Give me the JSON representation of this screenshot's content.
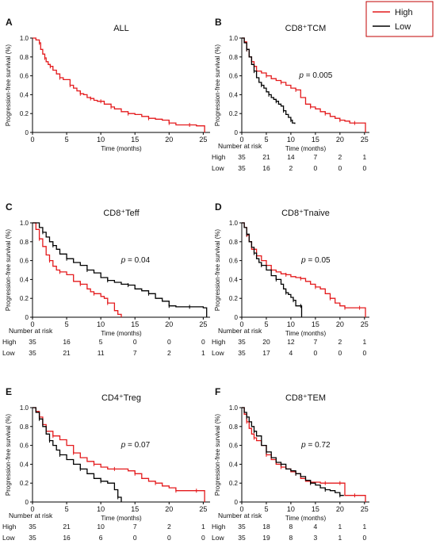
{
  "figure": {
    "ylabel": "Progression-free survival (%)",
    "xlabel": "Time (months)",
    "risk_title": "Number at risk",
    "yticks": [
      "0",
      "0.2",
      "0.4",
      "0.6",
      "0.8",
      "1.0"
    ],
    "xticks": [
      "0",
      "5",
      "10",
      "15",
      "20",
      "25"
    ],
    "legend": [
      {
        "name": "High",
        "color": "#e41a1c"
      },
      {
        "name": "Low",
        "color": "#000000"
      }
    ]
  },
  "chart_data": [
    {
      "type": "line",
      "panel": "A",
      "title": "ALL",
      "xlabel": "Time (months)",
      "ylabel": "Progression-free survival (%)",
      "xlim": [
        0,
        26
      ],
      "ylim": [
        0,
        1
      ],
      "series": [
        {
          "color": "#e41a1c",
          "x": [
            0,
            0.5,
            1,
            1.2,
            1.5,
            1.8,
            2,
            2.3,
            2.6,
            3,
            3.5,
            4,
            4.5,
            5,
            5.5,
            6,
            6.5,
            7,
            7.5,
            8,
            8.5,
            9,
            9.5,
            10,
            10.5,
            11,
            11.5,
            12,
            13,
            14,
            15,
            16,
            17,
            18,
            19,
            20,
            21,
            22,
            23,
            24,
            25,
            25.2
          ],
          "y": [
            1,
            0.98,
            0.95,
            0.88,
            0.83,
            0.79,
            0.75,
            0.72,
            0.7,
            0.66,
            0.62,
            0.58,
            0.56,
            0.56,
            0.5,
            0.47,
            0.44,
            0.41,
            0.4,
            0.37,
            0.36,
            0.34,
            0.33,
            0.33,
            0.3,
            0.3,
            0.27,
            0.25,
            0.22,
            0.2,
            0.19,
            0.17,
            0.15,
            0.14,
            0.13,
            0.1,
            0.08,
            0.08,
            0.08,
            0.07,
            0.07,
            0
          ]
        }
      ]
    },
    {
      "type": "line",
      "panel": "B",
      "title": "CD8⁺TCM",
      "annotation": "p = 0.005",
      "xlabel": "Time (months)",
      "ylabel": "Progression-free survival (%)",
      "xlim": [
        0,
        26
      ],
      "ylim": [
        0,
        1
      ],
      "series": [
        {
          "name": "High",
          "color": "#e41a1c",
          "x": [
            0,
            0.5,
            1,
            1.5,
            2,
            2.5,
            3,
            4,
            5,
            6,
            7,
            8,
            9,
            10,
            11,
            12,
            13,
            14,
            15,
            16,
            17,
            18,
            19,
            20,
            21,
            22,
            23,
            24,
            25,
            25.2
          ],
          "y": [
            1,
            0.96,
            0.88,
            0.8,
            0.75,
            0.7,
            0.65,
            0.63,
            0.6,
            0.57,
            0.55,
            0.53,
            0.5,
            0.47,
            0.45,
            0.37,
            0.3,
            0.27,
            0.25,
            0.22,
            0.2,
            0.17,
            0.15,
            0.13,
            0.12,
            0.1,
            0.1,
            0.1,
            0.1,
            0
          ]
        },
        {
          "name": "Low",
          "color": "#000000",
          "x": [
            0,
            0.5,
            1,
            1.5,
            2,
            2.5,
            3,
            3.5,
            4,
            4.5,
            5,
            5.5,
            6,
            6.5,
            7,
            7.5,
            8,
            8.5,
            9,
            9.5,
            10,
            10.3,
            10.8
          ],
          "y": [
            1,
            0.95,
            0.88,
            0.8,
            0.72,
            0.65,
            0.58,
            0.53,
            0.5,
            0.47,
            0.43,
            0.4,
            0.37,
            0.35,
            0.33,
            0.3,
            0.28,
            0.23,
            0.19,
            0.16,
            0.13,
            0.1,
            0.09
          ]
        }
      ],
      "risk_table": {
        "times": [
          0,
          5,
          10,
          15,
          20,
          25
        ],
        "rows": [
          {
            "label": "High",
            "values": [
              "35",
              "21",
              "14",
              "7",
              "2",
              "1"
            ]
          },
          {
            "label": "Low",
            "values": [
              "35",
              "16",
              "2",
              "0",
              "0",
              "0"
            ]
          }
        ]
      }
    },
    {
      "type": "line",
      "panel": "C",
      "title": "CD8⁺Teff",
      "annotation": "p = 0.04",
      "xlabel": "Time (months)",
      "ylabel": "Progression-free survival (%)",
      "xlim": [
        0,
        26
      ],
      "ylim": [
        0,
        1
      ],
      "series": [
        {
          "name": "High",
          "color": "#e41a1c",
          "x": [
            0,
            0.5,
            1,
            1.5,
            2,
            2.5,
            3,
            3.5,
            4,
            5,
            6,
            7,
            8,
            8.5,
            9,
            10,
            10.5,
            11,
            12,
            12.5,
            13
          ],
          "y": [
            1,
            0.93,
            0.83,
            0.75,
            0.66,
            0.6,
            0.54,
            0.5,
            0.48,
            0.45,
            0.38,
            0.35,
            0.3,
            0.27,
            0.25,
            0.22,
            0.2,
            0.15,
            0.07,
            0.03,
            0
          ]
        },
        {
          "name": "Low",
          "color": "#000000",
          "x": [
            0,
            1,
            1.5,
            2,
            2.5,
            3,
            3.5,
            4,
            5,
            6,
            7,
            8,
            9,
            10,
            11,
            12,
            13,
            14,
            15,
            16,
            17,
            18,
            19,
            20,
            21,
            22,
            23,
            24,
            25,
            25.5
          ],
          "y": [
            1,
            0.95,
            0.9,
            0.85,
            0.8,
            0.76,
            0.72,
            0.67,
            0.62,
            0.58,
            0.55,
            0.5,
            0.47,
            0.42,
            0.39,
            0.37,
            0.35,
            0.34,
            0.3,
            0.28,
            0.25,
            0.2,
            0.17,
            0.12,
            0.11,
            0.11,
            0.11,
            0.11,
            0.1,
            0
          ]
        }
      ],
      "risk_table": {
        "times": [
          0,
          5,
          10,
          15,
          20,
          25
        ],
        "rows": [
          {
            "label": "High",
            "values": [
              "35",
              "16",
              "5",
              "0",
              "0",
              "0"
            ]
          },
          {
            "label": "Low",
            "values": [
              "35",
              "21",
              "11",
              "7",
              "2",
              "1"
            ]
          }
        ]
      }
    },
    {
      "type": "line",
      "panel": "D",
      "title": "CD8⁺Tnaive",
      "annotation": "p = 0.05",
      "xlabel": "Time (months)",
      "ylabel": "Progression-free survival (%)",
      "xlim": [
        0,
        26
      ],
      "ylim": [
        0,
        1
      ],
      "series": [
        {
          "name": "High",
          "color": "#e41a1c",
          "x": [
            0,
            0.5,
            1,
            1.5,
            2,
            3,
            4,
            5,
            6,
            7,
            8,
            9,
            10,
            11,
            12,
            13,
            14,
            15,
            16,
            17,
            18,
            19,
            20,
            21,
            22,
            23,
            24,
            25,
            25.2
          ],
          "y": [
            1,
            0.95,
            0.87,
            0.8,
            0.72,
            0.65,
            0.6,
            0.55,
            0.5,
            0.48,
            0.46,
            0.45,
            0.43,
            0.42,
            0.41,
            0.38,
            0.35,
            0.32,
            0.3,
            0.25,
            0.2,
            0.15,
            0.12,
            0.1,
            0.1,
            0.1,
            0.1,
            0.1,
            0
          ]
        },
        {
          "name": "Low",
          "color": "#000000",
          "x": [
            0,
            0.5,
            1,
            1.5,
            2,
            2.5,
            3,
            3.5,
            4,
            5,
            6,
            7,
            8,
            8.5,
            9,
            9.5,
            10,
            10.5,
            11,
            11.5,
            12,
            12.2
          ],
          "y": [
            1,
            0.95,
            0.88,
            0.8,
            0.74,
            0.68,
            0.62,
            0.58,
            0.55,
            0.5,
            0.44,
            0.4,
            0.35,
            0.3,
            0.26,
            0.24,
            0.21,
            0.18,
            0.12,
            0.12,
            0.12,
            0
          ]
        }
      ],
      "risk_table": {
        "times": [
          0,
          5,
          10,
          15,
          20,
          25
        ],
        "rows": [
          {
            "label": "High",
            "values": [
              "35",
              "20",
              "12",
              "7",
              "2",
              "1"
            ]
          },
          {
            "label": "Low",
            "values": [
              "35",
              "17",
              "4",
              "0",
              "0",
              "0"
            ]
          }
        ]
      }
    },
    {
      "type": "line",
      "panel": "E",
      "title": "CD4⁺Treg",
      "annotation": "p = 0.07",
      "xlabel": "Time (months)",
      "ylabel": "Progression-free survival (%)",
      "xlim": [
        0,
        26
      ],
      "ylim": [
        0,
        1
      ],
      "series": [
        {
          "name": "High",
          "color": "#e41a1c",
          "x": [
            0,
            0.5,
            1,
            1.5,
            2,
            3,
            4,
            5,
            6,
            7,
            8,
            9,
            10,
            11,
            12,
            13,
            14,
            15,
            16,
            17,
            18,
            19,
            20,
            21,
            22,
            23,
            24,
            25,
            25.2
          ],
          "y": [
            1,
            0.96,
            0.9,
            0.82,
            0.75,
            0.7,
            0.66,
            0.6,
            0.52,
            0.47,
            0.43,
            0.4,
            0.37,
            0.35,
            0.35,
            0.35,
            0.33,
            0.3,
            0.25,
            0.22,
            0.2,
            0.17,
            0.15,
            0.12,
            0.12,
            0.12,
            0.12,
            0.12,
            0
          ]
        },
        {
          "name": "Low",
          "color": "#000000",
          "x": [
            0,
            0.5,
            1,
            1.5,
            2,
            2.5,
            3,
            3.5,
            4,
            5,
            6,
            7,
            8,
            9,
            10,
            11,
            12,
            12.5,
            13
          ],
          "y": [
            1,
            0.95,
            0.88,
            0.8,
            0.72,
            0.65,
            0.6,
            0.55,
            0.5,
            0.45,
            0.4,
            0.35,
            0.3,
            0.25,
            0.22,
            0.2,
            0.13,
            0.05,
            0
          ]
        }
      ],
      "risk_table": {
        "times": [
          0,
          5,
          10,
          15,
          20,
          25
        ],
        "rows": [
          {
            "label": "High",
            "values": [
              "35",
              "21",
              "10",
              "7",
              "2",
              "1"
            ]
          },
          {
            "label": "Low",
            "values": [
              "35",
              "16",
              "6",
              "0",
              "0",
              "0"
            ]
          }
        ]
      }
    },
    {
      "type": "line",
      "panel": "F",
      "title": "CD8⁺TEM",
      "annotation": "p = 0.72",
      "xlabel": "Time (months)",
      "ylabel": "Progression-free survival (%)",
      "xlim": [
        0,
        26
      ],
      "ylim": [
        0,
        1
      ],
      "series": [
        {
          "name": "High",
          "color": "#e41a1c",
          "x": [
            0,
            0.5,
            1,
            1.5,
            2,
            2.5,
            3,
            4,
            5,
            6,
            7,
            8,
            9,
            10,
            11,
            12,
            13,
            14,
            15,
            16,
            17,
            18,
            19,
            20,
            21,
            22,
            23,
            24,
            25,
            25.2
          ],
          "y": [
            1,
            0.93,
            0.85,
            0.78,
            0.72,
            0.68,
            0.65,
            0.6,
            0.5,
            0.45,
            0.4,
            0.37,
            0.35,
            0.32,
            0.3,
            0.25,
            0.22,
            0.21,
            0.21,
            0.2,
            0.2,
            0.2,
            0.2,
            0.2,
            0.07,
            0.07,
            0.07,
            0.07,
            0.07,
            0
          ]
        },
        {
          "name": "Low",
          "color": "#000000",
          "x": [
            0,
            0.5,
            1,
            1.5,
            2,
            2.5,
            3,
            4,
            5,
            6,
            7,
            8,
            9,
            10,
            11,
            12,
            13,
            14,
            15,
            16,
            17,
            18,
            19,
            20,
            20.8
          ],
          "y": [
            1,
            0.95,
            0.9,
            0.85,
            0.8,
            0.75,
            0.7,
            0.6,
            0.53,
            0.47,
            0.42,
            0.4,
            0.35,
            0.33,
            0.3,
            0.27,
            0.23,
            0.2,
            0.18,
            0.15,
            0.13,
            0.12,
            0.1,
            0.07,
            0.07
          ]
        }
      ],
      "risk_table": {
        "times": [
          0,
          5,
          10,
          15,
          20,
          25
        ],
        "rows": [
          {
            "label": "High",
            "values": [
              "35",
              "18",
              "8",
              "4",
              "1",
              "1"
            ]
          },
          {
            "label": "Low",
            "values": [
              "35",
              "19",
              "8",
              "3",
              "1",
              "0"
            ]
          }
        ]
      }
    }
  ]
}
